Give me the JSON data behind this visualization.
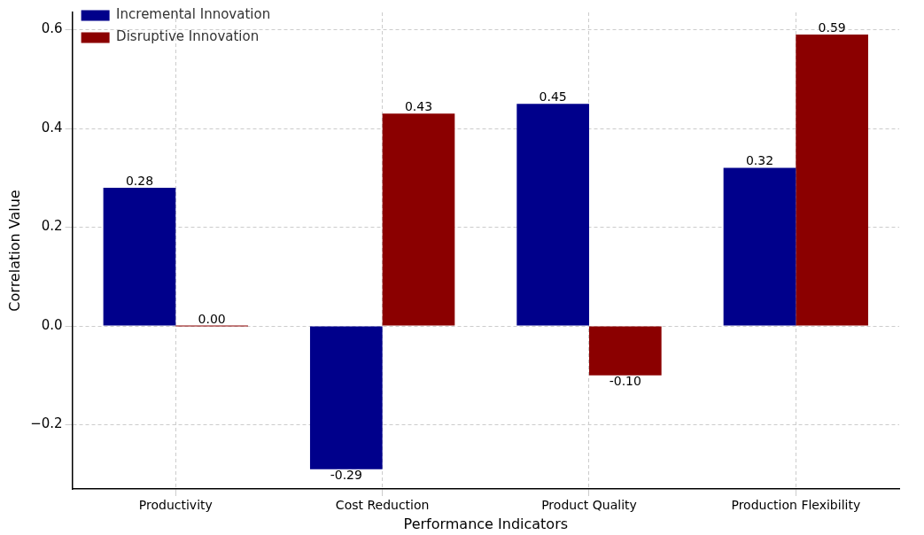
{
  "chart_data": {
    "type": "bar",
    "xlabel": "Performance Indicators",
    "ylabel": "Correlation Value",
    "categories": [
      "Productivity",
      "Cost Reduction",
      "Product Quality",
      "Production Flexibility"
    ],
    "series": [
      {
        "name": "Incremental Innovation",
        "color": "#00008b",
        "values": [
          0.28,
          -0.29,
          0.45,
          0.32
        ],
        "value_labels": [
          "0.28",
          "-0.29",
          "0.45",
          "0.32"
        ]
      },
      {
        "name": "Disruptive Innovation",
        "color": "#8b0000",
        "values": [
          0.0,
          0.43,
          -0.1,
          0.59
        ],
        "value_labels": [
          "0.00",
          "0.43",
          "-0.10",
          "0.59"
        ]
      }
    ],
    "ylim": [
      -0.33,
      0.635
    ],
    "yticks": [
      {
        "value": -0.2,
        "label": "−0.2"
      },
      {
        "value": 0,
        "label": "0.0"
      },
      {
        "value": 0.2,
        "label": "0.2"
      },
      {
        "value": 0.4,
        "label": "0.4"
      },
      {
        "value": 0.6,
        "label": "0.6"
      }
    ],
    "grid": true,
    "legend": "top left"
  }
}
